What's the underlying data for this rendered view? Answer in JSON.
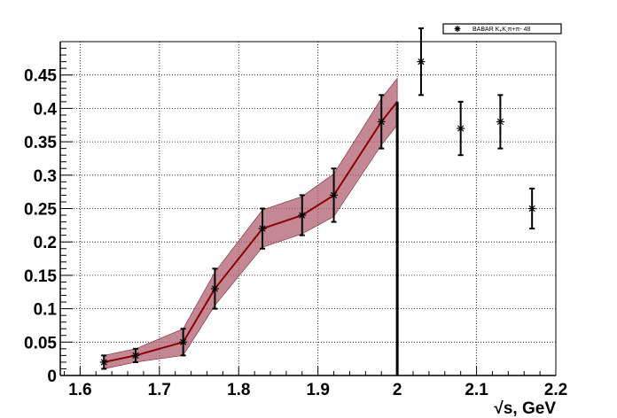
{
  "chart_data": {
    "type": "line",
    "title": "",
    "xlabel": "√s, GeV",
    "ylabel": "",
    "xlim": [
      1.575,
      2.2
    ],
    "ylim": [
      0,
      0.5
    ],
    "x_ticks": [
      1.6,
      1.7,
      1.8,
      1.9,
      2.0,
      2.1,
      2.2
    ],
    "x_tick_labels": [
      "1.6",
      "1.7",
      "1.8",
      "1.9",
      "2",
      "2.1",
      "2.2"
    ],
    "y_ticks": [
      0,
      0.05,
      0.1,
      0.15,
      0.2,
      0.25,
      0.3,
      0.35,
      0.4,
      0.45
    ],
    "y_tick_labels": [
      "0",
      "0.05",
      "0.1",
      "0.15",
      "0.2",
      "0.25",
      "0.3",
      "0.35",
      "0.4",
      "0.45"
    ],
    "grid": true,
    "legend_position": "top-right",
    "cutoff_x": 2.0,
    "series": [
      {
        "name": "BABAR K+K-π+π- 48",
        "kind": "points-with-errors",
        "color": "#000000",
        "x": [
          1.63,
          1.67,
          1.73,
          1.77,
          1.83,
          1.88,
          1.92,
          1.98,
          2.03,
          2.08,
          2.13,
          2.17
        ],
        "y": [
          0.02,
          0.03,
          0.05,
          0.13,
          0.22,
          0.24,
          0.27,
          0.38,
          0.47,
          0.37,
          0.38,
          0.25
        ],
        "yerr": [
          0.01,
          0.01,
          0.02,
          0.03,
          0.03,
          0.03,
          0.04,
          0.04,
          0.05,
          0.04,
          0.04,
          0.03
        ]
      },
      {
        "kind": "fit-curve-with-band",
        "color": "#8b0000",
        "band_color": "#b06070",
        "x": [
          1.63,
          1.67,
          1.73,
          1.77,
          1.83,
          1.88,
          1.92,
          1.98,
          2.0
        ],
        "y": [
          0.02,
          0.03,
          0.05,
          0.13,
          0.22,
          0.24,
          0.27,
          0.38,
          0.41
        ],
        "band_halfwidth": [
          0.01,
          0.01,
          0.02,
          0.025,
          0.028,
          0.028,
          0.032,
          0.035,
          0.035
        ]
      }
    ]
  },
  "legend": {
    "label_prefix": "BABAR K",
    "label_sub1": "+",
    "label_mid": "K",
    "label_sub2": "-",
    "label_tail": "π+π- 48"
  }
}
